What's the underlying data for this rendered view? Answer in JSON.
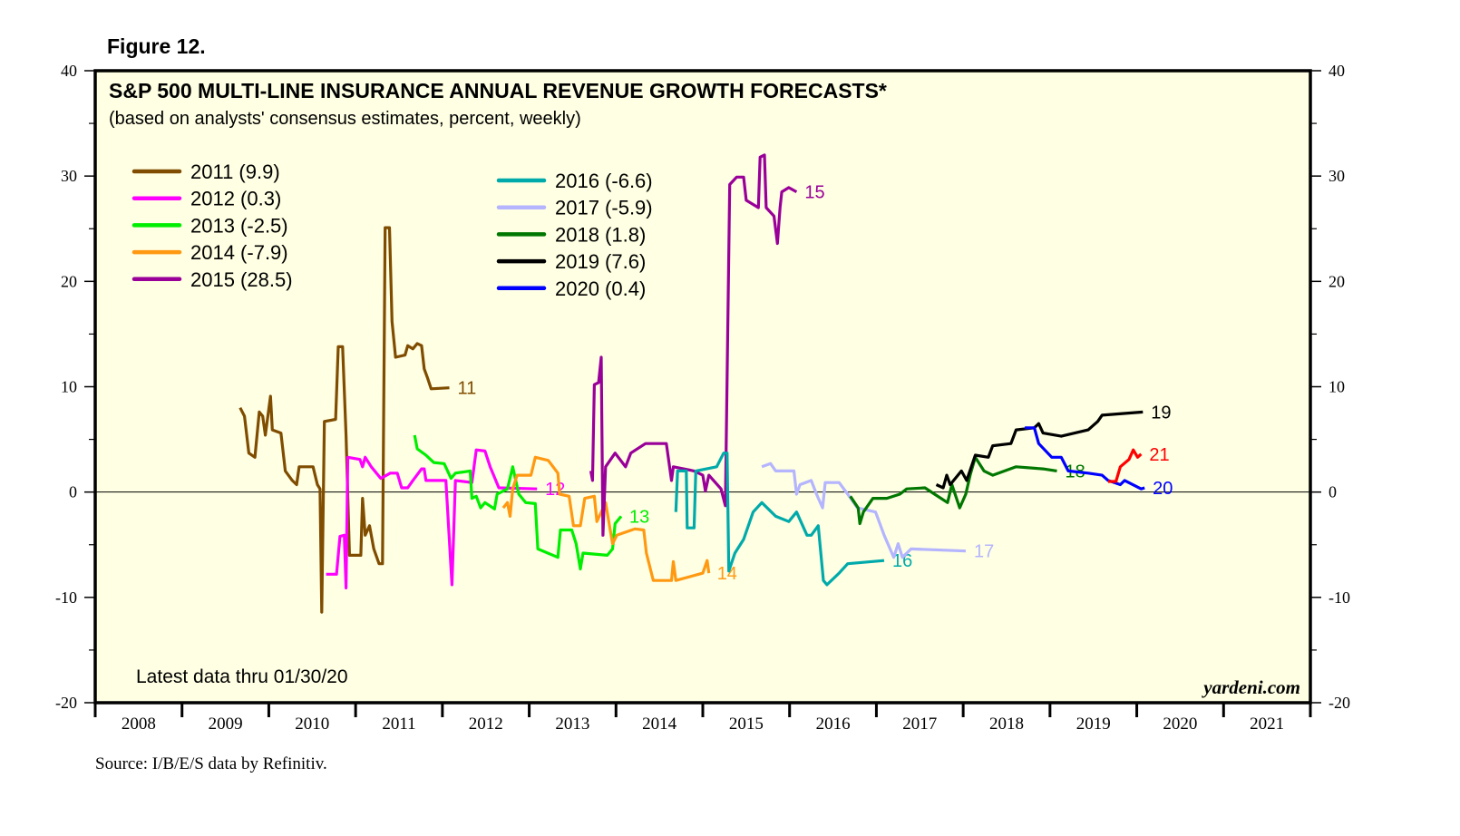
{
  "figure_label": "Figure 12.",
  "source": "Source: I/B/E/S data by Refinitiv.",
  "chart_data": {
    "type": "line",
    "title": "S&P 500 MULTI-LINE INSURANCE ANNUAL REVENUE GROWTH FORECASTS*",
    "subtitle": "(based on analysts' consensus estimates, percent, weekly)",
    "note": "Latest data thru 01/30/20",
    "watermark": "yardeni.com",
    "xlim": [
      2008,
      2022
    ],
    "ylim": [
      -20,
      40
    ],
    "y_ticks": [
      -20,
      -10,
      0,
      10,
      20,
      30,
      40
    ],
    "x_tick_labels": [
      "2008",
      "2009",
      "2010",
      "2011",
      "2012",
      "2013",
      "2014",
      "2015",
      "2016",
      "2017",
      "2018",
      "2019",
      "2020",
      "2021"
    ],
    "zero_line": true,
    "grid": false,
    "legend_placement": "top-left",
    "series": [
      {
        "name": "2011 (9.9)",
        "end_label": "11",
        "color": "#7f4c00",
        "points": [
          [
            2009.67,
            8.0
          ],
          [
            2009.72,
            7.2
          ],
          [
            2009.77,
            3.7
          ],
          [
            2009.84,
            3.3
          ],
          [
            2009.89,
            7.6
          ],
          [
            2009.93,
            7.2
          ],
          [
            2009.96,
            5.4
          ],
          [
            2010.02,
            9.1
          ],
          [
            2010.04,
            5.9
          ],
          [
            2010.14,
            5.6
          ],
          [
            2010.19,
            2.0
          ],
          [
            2010.27,
            1.1
          ],
          [
            2010.32,
            0.7
          ],
          [
            2010.35,
            2.4
          ],
          [
            2010.51,
            2.4
          ],
          [
            2010.56,
            0.7
          ],
          [
            2010.59,
            0.3
          ],
          [
            2010.61,
            -11.4
          ],
          [
            2010.64,
            6.7
          ],
          [
            2010.77,
            6.9
          ],
          [
            2010.8,
            13.8
          ],
          [
            2010.85,
            13.8
          ],
          [
            2010.89,
            5.4
          ],
          [
            2010.93,
            -6.0
          ],
          [
            2011.06,
            -6.0
          ],
          [
            2011.08,
            -0.6
          ],
          [
            2011.11,
            -4.1
          ],
          [
            2011.16,
            -3.2
          ],
          [
            2011.21,
            -5.4
          ],
          [
            2011.27,
            -6.8
          ],
          [
            2011.31,
            -6.8
          ],
          [
            2011.34,
            25.1
          ],
          [
            2011.39,
            25.1
          ],
          [
            2011.42,
            16.2
          ],
          [
            2011.46,
            12.8
          ],
          [
            2011.57,
            13.0
          ],
          [
            2011.6,
            13.9
          ],
          [
            2011.66,
            13.6
          ],
          [
            2011.71,
            14.1
          ],
          [
            2011.76,
            13.9
          ],
          [
            2011.79,
            11.7
          ],
          [
            2011.83,
            10.8
          ],
          [
            2011.87,
            9.8
          ],
          [
            2012.08,
            9.9
          ]
        ]
      },
      {
        "name": "2012 (0.3)",
        "end_label": "12",
        "color": "#ff00ff",
        "points": [
          [
            2010.66,
            -7.8
          ],
          [
            2010.78,
            -7.8
          ],
          [
            2010.82,
            -4.2
          ],
          [
            2010.87,
            -4.1
          ],
          [
            2010.89,
            -9.1
          ],
          [
            2010.91,
            3.3
          ],
          [
            2011.05,
            3.1
          ],
          [
            2011.08,
            2.4
          ],
          [
            2011.11,
            3.3
          ],
          [
            2011.18,
            2.4
          ],
          [
            2011.29,
            1.3
          ],
          [
            2011.4,
            1.8
          ],
          [
            2011.48,
            1.8
          ],
          [
            2011.53,
            0.4
          ],
          [
            2011.6,
            0.4
          ],
          [
            2011.66,
            1.1
          ],
          [
            2011.76,
            2.2
          ],
          [
            2011.79,
            2.2
          ],
          [
            2011.81,
            1.1
          ],
          [
            2012.04,
            1.1
          ],
          [
            2012.11,
            -8.8
          ],
          [
            2012.15,
            1.1
          ],
          [
            2012.34,
            0.9
          ],
          [
            2012.39,
            4.0
          ],
          [
            2012.49,
            3.9
          ],
          [
            2012.55,
            2.4
          ],
          [
            2012.65,
            0.4
          ],
          [
            2013.09,
            0.3
          ]
        ]
      },
      {
        "name": "2013 (-2.5)",
        "end_label": "13",
        "color": "#00ee00",
        "points": [
          [
            2011.68,
            5.4
          ],
          [
            2011.71,
            4.1
          ],
          [
            2011.81,
            3.5
          ],
          [
            2011.9,
            2.8
          ],
          [
            2012.02,
            2.7
          ],
          [
            2012.1,
            1.3
          ],
          [
            2012.15,
            1.8
          ],
          [
            2012.32,
            2.0
          ],
          [
            2012.34,
            -0.6
          ],
          [
            2012.39,
            -0.4
          ],
          [
            2012.44,
            -1.5
          ],
          [
            2012.49,
            -1.0
          ],
          [
            2012.6,
            -1.6
          ],
          [
            2012.63,
            -0.2
          ],
          [
            2012.75,
            0.3
          ],
          [
            2012.81,
            2.4
          ],
          [
            2012.88,
            -0.2
          ],
          [
            2012.96,
            -1.0
          ],
          [
            2013.07,
            -1.1
          ],
          [
            2013.1,
            -5.4
          ],
          [
            2013.33,
            -6.2
          ],
          [
            2013.36,
            -3.6
          ],
          [
            2013.49,
            -3.6
          ],
          [
            2013.54,
            -4.9
          ],
          [
            2013.59,
            -7.3
          ],
          [
            2013.62,
            -5.8
          ],
          [
            2013.9,
            -6.0
          ],
          [
            2013.96,
            -5.4
          ],
          [
            2013.99,
            -3.0
          ],
          [
            2014.06,
            -2.3
          ]
        ]
      },
      {
        "name": "2014 (-7.9)",
        "end_label": "14",
        "color": "#ff9912",
        "points": [
          [
            2012.7,
            -1.5
          ],
          [
            2012.75,
            -1.0
          ],
          [
            2012.78,
            -2.3
          ],
          [
            2012.81,
            0.3
          ],
          [
            2012.86,
            1.6
          ],
          [
            2013.02,
            1.6
          ],
          [
            2013.07,
            3.3
          ],
          [
            2013.22,
            3.0
          ],
          [
            2013.33,
            1.8
          ],
          [
            2013.35,
            -0.2
          ],
          [
            2013.46,
            -0.4
          ],
          [
            2013.51,
            -3.2
          ],
          [
            2013.59,
            -3.2
          ],
          [
            2013.64,
            -0.6
          ],
          [
            2013.75,
            -0.4
          ],
          [
            2013.78,
            -2.8
          ],
          [
            2013.88,
            -1.0
          ],
          [
            2013.96,
            -4.9
          ],
          [
            2014.01,
            -4.1
          ],
          [
            2014.22,
            -3.5
          ],
          [
            2014.32,
            -3.6
          ],
          [
            2014.35,
            -5.8
          ],
          [
            2014.43,
            -8.4
          ],
          [
            2014.64,
            -8.4
          ],
          [
            2014.66,
            -6.6
          ],
          [
            2014.69,
            -8.4
          ],
          [
            2015.0,
            -7.7
          ],
          [
            2015.05,
            -6.5
          ],
          [
            2015.07,
            -7.7
          ]
        ]
      },
      {
        "name": "2015 (28.5)",
        "end_label": "15",
        "color": "#990099",
        "points": [
          [
            2013.71,
            2.0
          ],
          [
            2013.73,
            1.1
          ],
          [
            2013.75,
            10.2
          ],
          [
            2013.8,
            10.4
          ],
          [
            2013.83,
            12.8
          ],
          [
            2013.85,
            -4.1
          ],
          [
            2013.88,
            2.4
          ],
          [
            2013.99,
            3.7
          ],
          [
            2014.11,
            2.4
          ],
          [
            2014.17,
            3.7
          ],
          [
            2014.34,
            4.6
          ],
          [
            2014.58,
            4.6
          ],
          [
            2014.64,
            1.1
          ],
          [
            2014.66,
            2.4
          ],
          [
            2014.9,
            2.0
          ],
          [
            2015.0,
            1.6
          ],
          [
            2015.03,
            0.1
          ],
          [
            2015.07,
            1.6
          ],
          [
            2015.21,
            0.3
          ],
          [
            2015.26,
            -1.3
          ],
          [
            2015.31,
            29.2
          ],
          [
            2015.39,
            29.9
          ],
          [
            2015.47,
            29.9
          ],
          [
            2015.5,
            27.7
          ],
          [
            2015.64,
            27.0
          ],
          [
            2015.66,
            31.8
          ],
          [
            2015.71,
            32.0
          ],
          [
            2015.73,
            27.0
          ],
          [
            2015.82,
            26.2
          ],
          [
            2015.86,
            23.6
          ],
          [
            2015.89,
            27.0
          ],
          [
            2015.91,
            28.5
          ],
          [
            2015.99,
            28.9
          ],
          [
            2016.08,
            28.5
          ]
        ]
      },
      {
        "name": "2016 (-6.6)",
        "end_label": "16",
        "color": "#00aaaa",
        "points": [
          [
            2014.69,
            -1.9
          ],
          [
            2014.71,
            2.0
          ],
          [
            2014.81,
            2.0
          ],
          [
            2014.82,
            -3.4
          ],
          [
            2014.9,
            -3.4
          ],
          [
            2014.92,
            2.0
          ],
          [
            2015.16,
            2.4
          ],
          [
            2015.24,
            3.7
          ],
          [
            2015.28,
            3.7
          ],
          [
            2015.3,
            -7.5
          ],
          [
            2015.37,
            -5.8
          ],
          [
            2015.47,
            -4.5
          ],
          [
            2015.58,
            -1.9
          ],
          [
            2015.68,
            -1.0
          ],
          [
            2015.84,
            -2.3
          ],
          [
            2015.99,
            -2.8
          ],
          [
            2016.08,
            -1.9
          ],
          [
            2016.2,
            -4.1
          ],
          [
            2016.25,
            -4.1
          ],
          [
            2016.33,
            -3.2
          ],
          [
            2016.39,
            -8.4
          ],
          [
            2016.43,
            -8.8
          ],
          [
            2016.57,
            -7.7
          ],
          [
            2016.67,
            -6.8
          ],
          [
            2017.09,
            -6.5
          ]
        ]
      },
      {
        "name": "2017 (-5.9)",
        "end_label": "17",
        "color": "#b4b4ff",
        "points": [
          [
            2015.68,
            2.4
          ],
          [
            2015.78,
            2.7
          ],
          [
            2015.84,
            2.0
          ],
          [
            2016.05,
            2.0
          ],
          [
            2016.08,
            -0.2
          ],
          [
            2016.12,
            0.7
          ],
          [
            2016.25,
            1.1
          ],
          [
            2016.31,
            -0.2
          ],
          [
            2016.38,
            -1.5
          ],
          [
            2016.41,
            0.9
          ],
          [
            2016.57,
            0.9
          ],
          [
            2016.67,
            -0.2
          ],
          [
            2016.78,
            -1.5
          ],
          [
            2016.99,
            -1.9
          ],
          [
            2017.09,
            -4.1
          ],
          [
            2017.2,
            -6.2
          ],
          [
            2017.25,
            -4.9
          ],
          [
            2017.3,
            -6.2
          ],
          [
            2017.4,
            -5.4
          ],
          [
            2018.03,
            -5.6
          ]
        ]
      },
      {
        "name": "2018 (1.8)",
        "end_label": "18",
        "color": "#007700",
        "points": [
          [
            2016.7,
            -0.4
          ],
          [
            2016.79,
            -1.5
          ],
          [
            2016.81,
            -3.0
          ],
          [
            2016.85,
            -1.9
          ],
          [
            2016.96,
            -0.6
          ],
          [
            2017.12,
            -0.6
          ],
          [
            2017.27,
            -0.2
          ],
          [
            2017.35,
            0.3
          ],
          [
            2017.56,
            0.4
          ],
          [
            2017.67,
            -0.2
          ],
          [
            2017.82,
            -1.0
          ],
          [
            2017.87,
            0.7
          ],
          [
            2017.96,
            -1.5
          ],
          [
            2018.03,
            -0.2
          ],
          [
            2018.08,
            1.6
          ],
          [
            2018.14,
            3.3
          ],
          [
            2018.24,
            2.0
          ],
          [
            2018.34,
            1.6
          ],
          [
            2018.61,
            2.4
          ],
          [
            2018.92,
            2.2
          ],
          [
            2019.08,
            2.0
          ]
        ]
      },
      {
        "name": "2019 (7.6)",
        "end_label": "19",
        "color": "#000000",
        "points": [
          [
            2017.69,
            0.7
          ],
          [
            2017.77,
            0.4
          ],
          [
            2017.81,
            1.6
          ],
          [
            2017.85,
            0.7
          ],
          [
            2017.98,
            2.0
          ],
          [
            2018.04,
            1.1
          ],
          [
            2018.14,
            3.5
          ],
          [
            2018.29,
            3.3
          ],
          [
            2018.34,
            4.4
          ],
          [
            2018.55,
            4.6
          ],
          [
            2018.61,
            5.9
          ],
          [
            2018.82,
            6.1
          ],
          [
            2018.87,
            6.5
          ],
          [
            2018.92,
            5.6
          ],
          [
            2019.13,
            5.3
          ],
          [
            2019.44,
            5.9
          ],
          [
            2019.55,
            6.7
          ],
          [
            2019.6,
            7.3
          ],
          [
            2020.07,
            7.6
          ]
        ]
      },
      {
        "name": "2020 (0.4)",
        "end_label": "20",
        "color": "#0000ff",
        "points": [
          [
            2018.71,
            6.1
          ],
          [
            2018.82,
            6.1
          ],
          [
            2018.87,
            4.6
          ],
          [
            2019.02,
            3.3
          ],
          [
            2019.13,
            3.3
          ],
          [
            2019.21,
            2.0
          ],
          [
            2019.44,
            1.8
          ],
          [
            2019.6,
            1.6
          ],
          [
            2019.67,
            1.1
          ],
          [
            2019.81,
            0.7
          ],
          [
            2019.86,
            1.1
          ],
          [
            2020.05,
            0.3
          ],
          [
            2020.09,
            0.4
          ]
        ]
      },
      {
        "end_label": "21",
        "color": "#ff0000",
        "points": [
          [
            2019.67,
            1.0
          ],
          [
            2019.76,
            1.0
          ],
          [
            2019.81,
            2.4
          ],
          [
            2019.91,
            3.1
          ],
          [
            2019.96,
            4.0
          ],
          [
            2020.01,
            3.3
          ],
          [
            2020.05,
            3.6
          ]
        ]
      }
    ]
  }
}
